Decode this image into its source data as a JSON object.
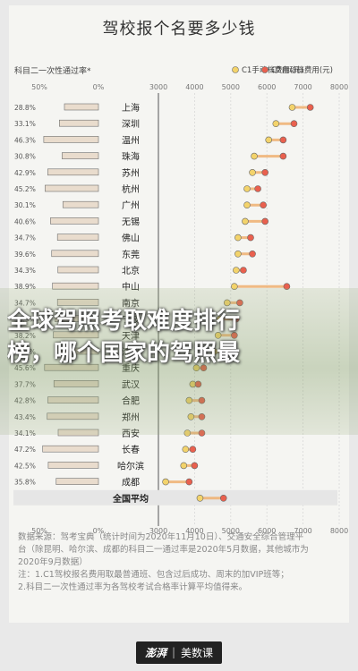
{
  "title": "驾校报个名要多少钱",
  "overlay": {
    "line1": "全球驾照考取难度排行",
    "line2": "榜，哪个国家的驾照最"
  },
  "notes": [
    "数据来源：驾考宝典（统计时间为2020年11月10日）、交通安全综合管理平",
    "台（除昆明、哈尔滨、成都的科目二一通过率是2020年5月数据，其他城市为",
    "2020年9月数据）",
    "注：1.C1驾校报名费用取最普通班、包含过后成功、周末的加VIP班等；",
    "2.科目二一次性通过率为各驾校考试合格率计算平均值得来。"
  ],
  "footer": {
    "logo_left": "澎湃",
    "logo_right": "美数课"
  },
  "colors": {
    "bar": "#e9dccd",
    "bar_stroke": "#6e6e6e",
    "c1": "#f3d36b",
    "c2": "#e9604e",
    "connector": "#f0b070"
  },
  "chart_data": {
    "type": "dumbbell+bar",
    "left_header": "科目二一次性通过率*",
    "c1_label": "C1手动档费用(元)",
    "c2_label": "C2自动档费用(元)",
    "pass_rate_axis": {
      "ticks": [
        "50%",
        "0%"
      ]
    },
    "fee_axis": {
      "range": [
        3000,
        8000
      ],
      "ticks": [
        3000,
        4000,
        5000,
        6000,
        7000,
        8000
      ]
    },
    "grid": true,
    "cities": [
      "上海",
      "深圳",
      "温州",
      "珠海",
      "苏州",
      "杭州",
      "广州",
      "无锡",
      "佛山",
      "东莞",
      "北京",
      "中山",
      "南京",
      "宁波",
      "天津",
      "沈阳",
      "重庆",
      "武汉",
      "合肥",
      "郑州",
      "西安",
      "长春",
      "哈尔滨",
      "成都",
      "全国平均"
    ],
    "pass_rate_labels": [
      "28.8%",
      "33.1%",
      "46.3%",
      "30.8%",
      "42.9%",
      "45.2%",
      "30.1%",
      "40.6%",
      "34.7%",
      "39.6%",
      "34.3%",
      "38.9%",
      "34.7%",
      "36.9%",
      "38.2%",
      "35.5%",
      "45.6%",
      "37.7%",
      "42.8%",
      "43.4%",
      "34.1%",
      "47.2%",
      "42.5%",
      "35.8%",
      ""
    ],
    "pass_rate": [
      28.8,
      33.1,
      46.3,
      30.8,
      42.9,
      45.2,
      30.1,
      40.6,
      34.7,
      39.6,
      34.3,
      38.9,
      34.7,
      36.9,
      38.2,
      35.5,
      45.6,
      37.7,
      42.8,
      43.4,
      34.1,
      47.2,
      42.5,
      35.8,
      null
    ],
    "c1_fee": [
      6700,
      6250,
      6050,
      5650,
      5600,
      5450,
      5450,
      5400,
      5200,
      5200,
      5150,
      5100,
      4900,
      4700,
      4650,
      4550,
      4050,
      3950,
      3850,
      3900,
      3800,
      3750,
      3700,
      3200,
      4150
    ],
    "c2_fee": [
      7200,
      6750,
      6450,
      6450,
      5950,
      5750,
      5900,
      5950,
      5550,
      5600,
      5350,
      6550,
      5250,
      5150,
      5100,
      4950,
      4250,
      4100,
      4200,
      4200,
      4200,
      3950,
      4000,
      3850,
      4800
    ]
  }
}
